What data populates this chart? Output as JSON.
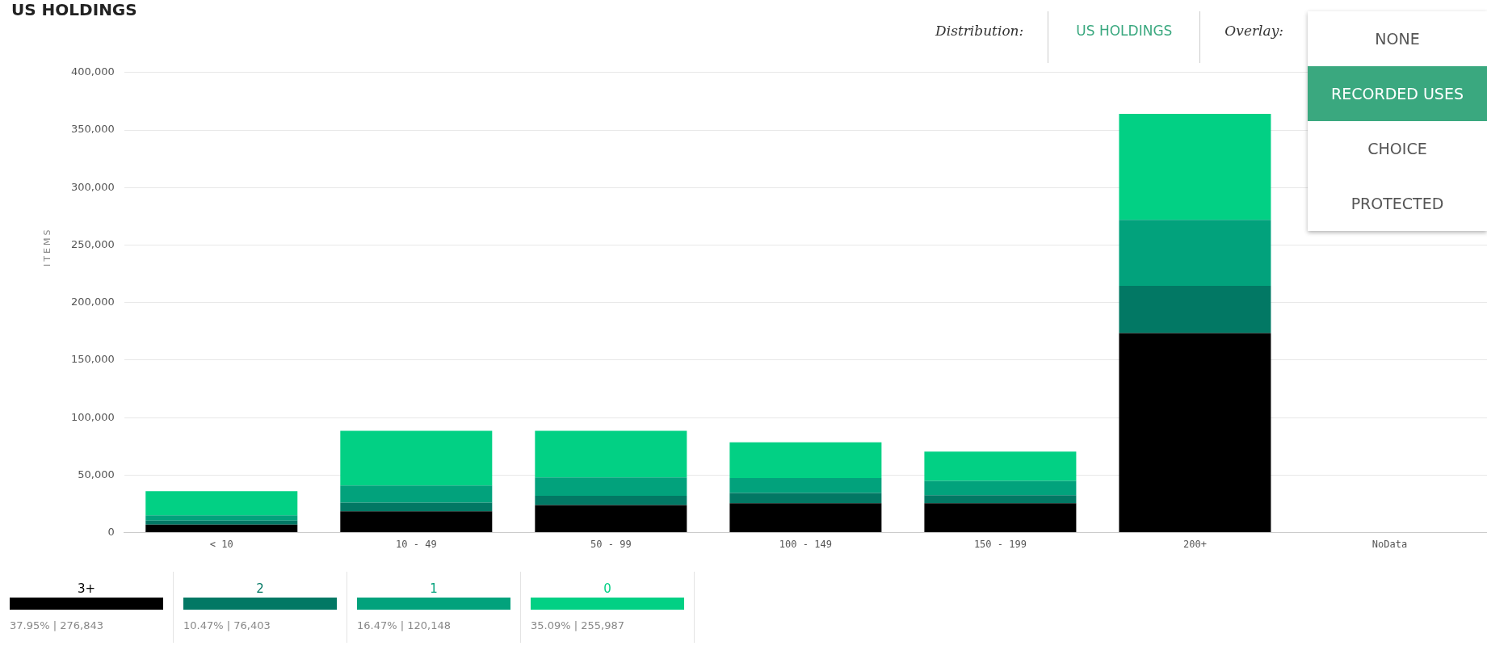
{
  "chart_data": {
    "type": "bar",
    "title": "US HOLDINGS",
    "ylabel": "ITEMS",
    "categories": [
      "< 10",
      "10 - 49",
      "50 - 99",
      "100 - 149",
      "150 - 199",
      "200+",
      "NoData"
    ],
    "stacked": true,
    "series": [
      {
        "name": "3+",
        "color": "#000000",
        "values": [
          7000,
          18500,
          24000,
          25500,
          25500,
          173500,
          null
        ]
      },
      {
        "name": "2",
        "color": "#027864",
        "values": [
          3500,
          7500,
          8000,
          9000,
          7000,
          41000,
          null
        ]
      },
      {
        "name": "1",
        "color": "#02a27c",
        "values": [
          4500,
          15000,
          16000,
          13000,
          12500,
          57500,
          null
        ]
      },
      {
        "name": "0",
        "color": "#02d084",
        "values": [
          21000,
          47500,
          40500,
          31000,
          25500,
          92000,
          null
        ]
      }
    ],
    "ylim": [
      0,
      400000
    ],
    "yticks": [
      {
        "value": 0,
        "label": "0"
      },
      {
        "value": 50000,
        "label": "50,000"
      },
      {
        "value": 100000,
        "label": "100,000"
      },
      {
        "value": 150000,
        "label": "150,000"
      },
      {
        "value": 200000,
        "label": "200,000"
      },
      {
        "value": 250000,
        "label": "250,000"
      },
      {
        "value": 300000,
        "label": "300,000"
      },
      {
        "value": 350000,
        "label": "350,000"
      },
      {
        "value": 400000,
        "label": "400,000"
      }
    ],
    "grid": "y",
    "legend": "bottom",
    "annotations": [
      "Distribution:",
      "US HOLDINGS",
      "Overlay:",
      "NONE",
      "RECORDED USES",
      "CHOICE",
      "PROTECTED",
      "37.95% | 276,843",
      "10.47% | 76,403",
      "16.47% | 120,148",
      "35.09% | 255,987"
    ]
  }
}
